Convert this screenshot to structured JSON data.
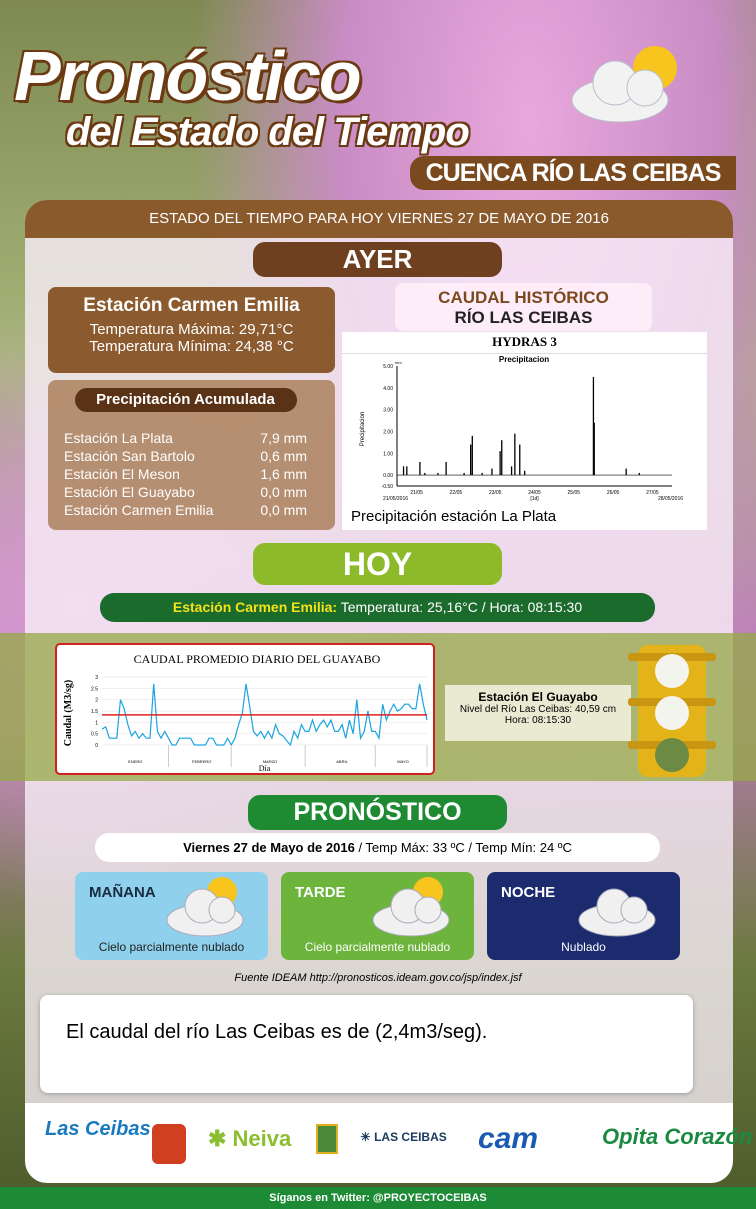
{
  "header": {
    "title": "Pronóstico",
    "subtitle": "del Estado del Tiempo",
    "region": "CUENCA RÍO LAS CEIBAS",
    "date_bar": "ESTADO DEL TIEMPO PARA HOY VIERNES 27 DE MAYO DE 2016"
  },
  "ayer": {
    "label": "AYER",
    "station": {
      "name": "Estación Carmen Emilia",
      "max": "Temperatura Máxima: 29,71°C",
      "min": "Temperatura Mínima: 24,38 °C"
    },
    "precip": {
      "title": "Precipitación Acumulada",
      "rows": [
        {
          "station": "Estación La Plata",
          "value": "7,9 mm"
        },
        {
          "station": "Estación San Bartolo",
          "value": "0,6 mm"
        },
        {
          "station": "Estación El Meson",
          "value": "1,6 mm"
        },
        {
          "station": "Estación El Guayabo",
          "value": "0,0 mm"
        },
        {
          "station": "Estación Carmen Emilia",
          "value": "0,0 mm"
        }
      ]
    },
    "historic": {
      "title": "CAUDAL HISTÓRICO",
      "subtitle": "RÍO LAS CEIBAS",
      "caption": "Precipitación estación La Plata"
    }
  },
  "hoy": {
    "label": "HOY",
    "station": "Estación Carmen Emilia:",
    "reading": "Temperatura: 25,16°C / Hora: 08:15:30",
    "guayabo": {
      "name": "Estación El Guayabo",
      "level": "Nivel del Río Las Ceibas: 40,59 cm",
      "time": "Hora: 08:15:30",
      "traffic_light": "green"
    }
  },
  "chart_data": [
    {
      "type": "bar",
      "header": "HYDRAS 3",
      "title": "Precipitacion",
      "ylabel": "Precipitacion",
      "yunit": "mm",
      "xlabel": "[1d]",
      "ylim": [
        -0.5,
        5
      ],
      "yticks": [
        "5.00",
        "4.00",
        "3.00",
        "2.00",
        "1.00",
        "0.00",
        "-0.50"
      ],
      "xticks": [
        "21/05",
        "22/05",
        "23/05",
        "24/05",
        "25/05",
        "26/05",
        "27/05"
      ],
      "xstart": "21/05/2016",
      "xend": "28/05/2016",
      "points": [
        [
          "2016-05-21T04:00",
          0.4
        ],
        [
          "2016-05-21T06:00",
          0.4
        ],
        [
          "2016-05-21T14:00",
          0.6
        ],
        [
          "2016-05-21T17:00",
          0.1
        ],
        [
          "2016-05-22T01:00",
          0.1
        ],
        [
          "2016-05-22T06:00",
          0.6
        ],
        [
          "2016-05-22T17:00",
          0.1
        ],
        [
          "2016-05-22T21:00",
          1.4
        ],
        [
          "2016-05-22T22:00",
          1.8
        ],
        [
          "2016-05-23T04:00",
          0.1
        ],
        [
          "2016-05-23T10:00",
          0.3
        ],
        [
          "2016-05-23T15:00",
          1.1
        ],
        [
          "2016-05-23T16:00",
          1.6
        ],
        [
          "2016-05-23T22:00",
          0.4
        ],
        [
          "2016-05-24T00:00",
          1.9
        ],
        [
          "2016-05-24T03:00",
          1.4
        ],
        [
          "2016-05-24T06:00",
          0.2
        ],
        [
          "2016-05-26T00:00",
          4.5
        ],
        [
          "2016-05-26T00:30",
          2.4
        ],
        [
          "2016-05-26T20:00",
          0.3
        ],
        [
          "2016-05-27T04:00",
          0.1
        ]
      ],
      "color": "#000000"
    },
    {
      "type": "line",
      "title": "CAUDAL PROMEDIO DIARIO DEL GUAYABO",
      "ylabel": "Caudal (M3/sg)",
      "xlabel": "Día",
      "ylim": [
        0,
        3
      ],
      "yticks": [
        "3",
        "2.5",
        "2",
        "1.5",
        "1",
        "0.5",
        "0"
      ],
      "categories": [
        "ENERO",
        "FEBRERO",
        "MARZO",
        "ABRIL",
        "MAYO"
      ],
      "series": [
        [
          0.7,
          0.8,
          0.3,
          0.3,
          0.3,
          2.0,
          1.6,
          0.9,
          0.4,
          0.6,
          0.3,
          0.5,
          0.3,
          0.3,
          2.7,
          0.6,
          0.3,
          0.6,
          0.3
        ],
        [
          0,
          0,
          0.3,
          0.3,
          0.3,
          0.3,
          0,
          0,
          0,
          0,
          0.3,
          0.3,
          0,
          0,
          0,
          0.3,
          0
        ],
        [
          0.3,
          0.9,
          1.4,
          2.7,
          1.7,
          0.6,
          0.4,
          0.6,
          0.3,
          0.6,
          0.3,
          0.9,
          0.5,
          0.4,
          0.2,
          0,
          0.6,
          0.3,
          0.9,
          0.6
        ],
        [
          0.6,
          1.1,
          0.6,
          0.9,
          1.1,
          0.8,
          1.1,
          0.6,
          0.6,
          0.9,
          0.3,
          1.1,
          0.5,
          2.0,
          0.3,
          0.6,
          1.5,
          0.6,
          0.6
        ],
        [
          0.3,
          1.8,
          1.1,
          1.5,
          1.8,
          1.5,
          1.6,
          1.8,
          1.8,
          1.6,
          1.6,
          2.7,
          1.8,
          1.1
        ]
      ],
      "threshold": 1.33,
      "line_color": "#1aa3e0",
      "threshold_color": "#e02020"
    }
  ],
  "pronostico": {
    "label": "PRONÓSTICO",
    "date": "Viernes 27 de Mayo de 2016",
    "temps": "/ Temp Máx: 33 ºC / Temp Mín: 24 ºC",
    "periods": [
      {
        "name": "MAÑANA",
        "desc": "Cielo parcialmente nublado",
        "icon": "partly-cloudy-icon",
        "color": "#8fd0ec"
      },
      {
        "name": "TARDE",
        "desc": "Cielo parcialmente nublado",
        "icon": "partly-cloudy-icon",
        "color": "#6cb43c"
      },
      {
        "name": "NOCHE",
        "desc": "Nublado",
        "icon": "cloudy-icon",
        "color": "#1c2a6e"
      }
    ],
    "source": "Fuente IDEAM http://pronosticos.ideam.gov.co/jsp/index.jsf"
  },
  "note": "El caudal del río Las Ceibas es de (2,4m3/seg).",
  "logos": [
    "Cuenca Río Las Ceibas ¡Nuestro Río!",
    "Gobernación del Huila",
    "NEIVA LA RAZÓN DE TODOS",
    "Municipio de Neiva",
    "LAS CEIBAS",
    "CAM ¡Cuida tu naturaleza!",
    "Opita de Corazón"
  ],
  "footer": "Síganos en Twitter: @PROYECTOCEIBAS"
}
